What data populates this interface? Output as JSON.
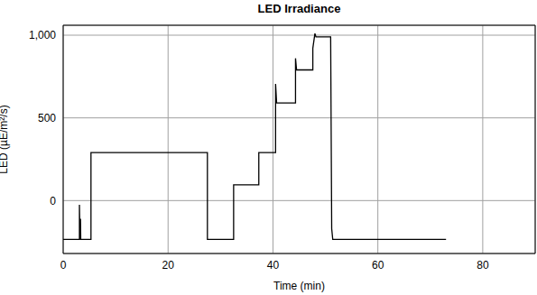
{
  "chart_data": {
    "type": "line",
    "title": "LED Irradiance",
    "x_label": "Time (min)",
    "y_label": "LED (µE/m²/s)",
    "xlim": [
      0,
      90
    ],
    "xticks": [
      0,
      20,
      40,
      60,
      80
    ],
    "ylim": [
      -320,
      1060
    ],
    "yticks": [
      0,
      500,
      {
        "value": 1000,
        "label": "1,000"
      }
    ],
    "grid": true,
    "series": [
      {
        "name": "LED",
        "color": "#000000",
        "line_style": "solid",
        "x": [
          0,
          3.1,
          3.1,
          3.2,
          3.3,
          3.35,
          5.3,
          5.3,
          27.5,
          27.5,
          32.5,
          32.5,
          37.3,
          37.3,
          40.5,
          40.5,
          40.7,
          44.3,
          44.3,
          44.5,
          47.6,
          47.6,
          48.0,
          48.2,
          51.0,
          51.2,
          51.4,
          73
        ],
        "values": [
          -235,
          -235,
          -25,
          -235,
          -110,
          -235,
          -235,
          290,
          290,
          -235,
          -235,
          95,
          95,
          290,
          290,
          705,
          590,
          590,
          860,
          790,
          790,
          920,
          1010,
          990,
          990,
          -170,
          -235,
          -235
        ]
      }
    ]
  }
}
